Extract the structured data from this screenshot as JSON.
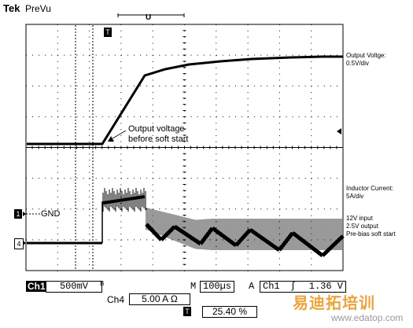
{
  "header": {
    "brand": "Tek",
    "mode": "PreVu",
    "trigger_marker": "T",
    "top_marker": "U"
  },
  "right_labels": {
    "output_voltage": "Output Voltge:",
    "output_scale": "0.5V/div",
    "inductor_current": "Inductor Current:",
    "current_scale": "5A/div",
    "conditions": [
      "12V input",
      "2.5V output",
      "Pre-bias soft start"
    ]
  },
  "annotation": {
    "line1": "Output voltage",
    "line2": "before soft start"
  },
  "gnd_label": "GND",
  "channel_markers": {
    "ch1": "1",
    "ch4": "4"
  },
  "status_bar": {
    "ch1_label": "Ch1",
    "ch1_scale": "500mV",
    "ch1_bw": "B",
    "timebase_label": "M",
    "timebase": "100µs",
    "trigger_label": "A",
    "trigger_source": "Ch1",
    "trigger_slope": "∫",
    "trigger_level": "1.36 V",
    "ch4_label": "Ch4",
    "ch4_scale": "5.00 A Ω",
    "trigger_pos_icon": "T",
    "trigger_pos": "25.40 %"
  },
  "watermark": {
    "text": "易迪拓培训",
    "url": "www.edatop.com"
  },
  "colors": {
    "trace": "#000000",
    "grid": "#000000",
    "watermark": "#e9a43c"
  }
}
